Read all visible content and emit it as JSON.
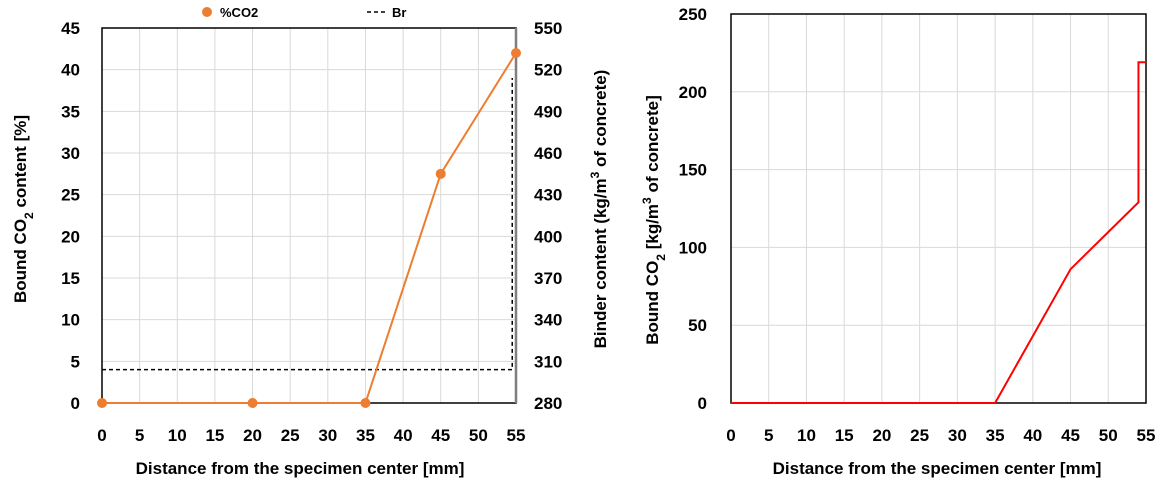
{
  "chart_data": [
    {
      "type": "line",
      "xlabel": "Distance from the specimen center [mm]",
      "ylabel_main": "Bound CO",
      "ylabel_sub": "2",
      "ylabel_tail": " content [%]",
      "y2label_main": "Binder content (kg/m",
      "y2label_sup": "3",
      "y2label_tail": " of concrete)",
      "xlim": [
        0,
        55
      ],
      "ylim": [
        0,
        45
      ],
      "y2lim": [
        280,
        550
      ],
      "xticks": [
        0,
        5,
        10,
        15,
        20,
        25,
        30,
        35,
        40,
        45,
        50,
        55
      ],
      "yticks": [
        0,
        5,
        10,
        15,
        20,
        25,
        30,
        35,
        40,
        45
      ],
      "y2ticks": [
        280,
        310,
        340,
        370,
        400,
        430,
        460,
        490,
        520,
        550
      ],
      "grid": true,
      "legend_position": "top",
      "series": [
        {
          "name": "%CO2",
          "axis": "left",
          "color": "#ed7d31",
          "style": "solid-markers",
          "x": [
            0,
            20,
            35,
            45,
            55
          ],
          "y": [
            0,
            0,
            0,
            27.5,
            42
          ]
        },
        {
          "name": "Br",
          "axis": "right",
          "color": "#000000",
          "style": "dashed-step",
          "x": [
            0,
            54.5,
            54.5
          ],
          "y": [
            304,
            304,
            514
          ]
        }
      ]
    },
    {
      "type": "line",
      "xlabel": "Distance from the specimen center [mm]",
      "ylabel_main": "Bound CO",
      "ylabel_sub": "2",
      "ylabel_tail": "  [kg/m",
      "ylabel_sup": "3",
      "ylabel_end": " of concrete]",
      "xlim": [
        0,
        55
      ],
      "ylim": [
        0,
        250
      ],
      "xticks": [
        0,
        5,
        10,
        15,
        20,
        25,
        30,
        35,
        40,
        45,
        50,
        55
      ],
      "yticks": [
        0,
        50,
        100,
        150,
        200,
        250
      ],
      "grid": true,
      "series": [
        {
          "color": "#ff0000",
          "x": [
            0,
            35,
            45,
            54,
            54,
            55
          ],
          "y": [
            0,
            0,
            86,
            129,
            219,
            219
          ]
        }
      ]
    }
  ]
}
